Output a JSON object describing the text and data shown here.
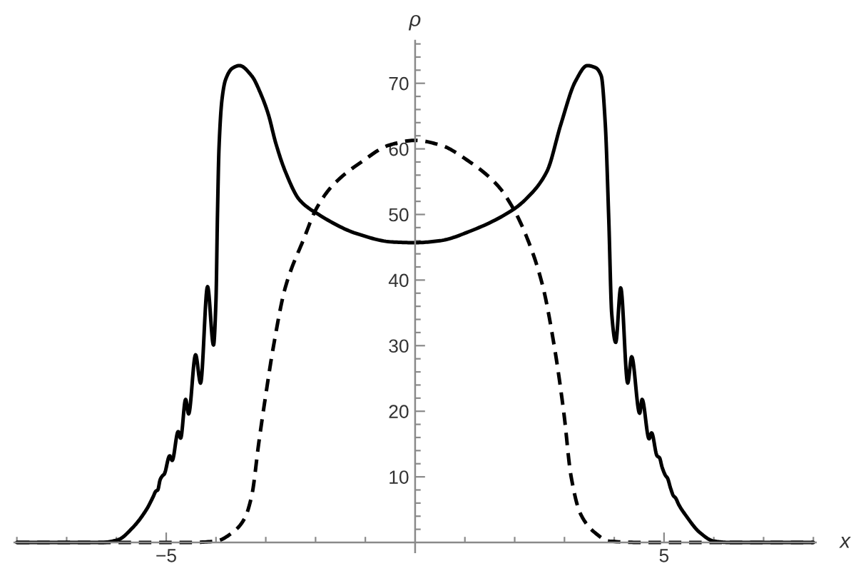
{
  "chart_data": {
    "type": "line",
    "xlabel": "x",
    "ylabel": "ρ",
    "xlim": [
      -8.05,
      8.05
    ],
    "ylim": [
      -1.5,
      76.5
    ],
    "xticks": [
      {
        "value": -8,
        "label": null
      },
      {
        "value": -7,
        "label": null
      },
      {
        "value": -6,
        "label": null
      },
      {
        "value": -5,
        "label": "−5"
      },
      {
        "value": -4,
        "label": null
      },
      {
        "value": -3,
        "label": null
      },
      {
        "value": -2,
        "label": null
      },
      {
        "value": -1,
        "label": null
      },
      {
        "value": 1,
        "label": null
      },
      {
        "value": 2,
        "label": null
      },
      {
        "value": 3,
        "label": null
      },
      {
        "value": 4,
        "label": null
      },
      5,
      {
        "value": 6,
        "label": null
      },
      {
        "value": 7,
        "label": null
      },
      {
        "value": 8,
        "label": null
      }
    ],
    "yticks": [
      {
        "value": 2,
        "label": null
      },
      {
        "value": 4,
        "label": null
      },
      {
        "value": 6,
        "label": null
      },
      {
        "value": 8,
        "label": null
      },
      10,
      {
        "value": 12,
        "label": null
      },
      {
        "value": 14,
        "label": null
      },
      {
        "value": 16,
        "label": null
      },
      {
        "value": 18,
        "label": null
      },
      20,
      {
        "value": 22,
        "label": null
      },
      {
        "value": 24,
        "label": null
      },
      {
        "value": 26,
        "label": null
      },
      {
        "value": 28,
        "label": null
      },
      30,
      {
        "value": 32,
        "label": null
      },
      {
        "value": 34,
        "label": null
      },
      {
        "value": 36,
        "label": null
      },
      {
        "value": 38,
        "label": null
      },
      40,
      {
        "value": 42,
        "label": null
      },
      {
        "value": 44,
        "label": null
      },
      {
        "value": 46,
        "label": null
      },
      {
        "value": 48,
        "label": null
      },
      50,
      {
        "value": 52,
        "label": null
      },
      {
        "value": 54,
        "label": null
      },
      {
        "value": 56,
        "label": null
      },
      {
        "value": 58,
        "label": null
      },
      60,
      {
        "value": 62,
        "label": null
      },
      {
        "value": 64,
        "label": null
      },
      {
        "value": 66,
        "label": null
      },
      {
        "value": 68,
        "label": null
      },
      70,
      {
        "value": 72,
        "label": null
      },
      {
        "value": 74,
        "label": null
      },
      {
        "value": 76,
        "label": null
      }
    ],
    "series": [
      {
        "color": "#000000",
        "line_style": "solid",
        "x": [
          -8,
          -6.3,
          -5.97,
          -5.68,
          -5.39,
          -5.26,
          -5.21,
          -5.17,
          -5.12,
          -5.07,
          -5.04,
          -4.93,
          -4.88,
          -4.76,
          -4.71,
          -4.61,
          -4.55,
          -4.41,
          -4.31,
          -4.17,
          -4.05,
          -4.0,
          -3.97,
          -3.94,
          -3.88,
          -3.81,
          -3.67,
          -3.53,
          -3.28,
          -3.09,
          -2.95,
          -2.8,
          -2.61,
          -2.32,
          -1.94,
          -1.18,
          -0.45,
          0,
          0.5,
          1.12,
          1.98,
          2.26,
          2.65,
          2.93,
          3.22,
          3.46,
          3.62,
          3.74,
          3.82,
          3.89,
          3.95,
          4.03,
          4.13,
          4.27,
          4.35,
          4.51,
          4.56,
          4.7,
          4.75,
          4.86,
          4.91,
          4.96,
          5.03,
          5.07,
          5.13,
          5.19,
          5.23,
          5.3,
          5.43,
          5.72,
          6.0,
          6.3,
          8
        ],
        "values": [
          0,
          0,
          0.4,
          2.2,
          5.1,
          7.0,
          7.8,
          8.0,
          9.6,
          10.2,
          10.4,
          13.2,
          12.5,
          16.9,
          15.9,
          21.8,
          19.6,
          28.6,
          24.3,
          39.0,
          30.1,
          37.0,
          50.0,
          60.0,
          67.5,
          70.5,
          72.3,
          72.7,
          71.1,
          68.2,
          65.3,
          60.9,
          56.6,
          52.2,
          50.0,
          47.1,
          45.8,
          45.7,
          46.0,
          47.5,
          50.8,
          52.6,
          56.6,
          63.8,
          70.3,
          72.7,
          72.4,
          71.1,
          63.8,
          49.3,
          34.8,
          30.5,
          38.8,
          24.3,
          28.3,
          19.7,
          21.8,
          15.8,
          16.7,
          13.2,
          12.9,
          11.5,
          10.2,
          9.8,
          8.3,
          7.1,
          6.8,
          5.7,
          4.2,
          1.5,
          0.2,
          0,
          0
        ]
      },
      {
        "color": "#000000",
        "line_style": "dashed",
        "x": [
          -8,
          -4.5,
          -4.0,
          -3.67,
          -3.43,
          -3.28,
          -3.14,
          -3.0,
          -2.85,
          -2.61,
          -2.23,
          -1.99,
          -1.66,
          -1.08,
          -0.51,
          0,
          0.5,
          1.1,
          1.66,
          1.98,
          2.25,
          2.56,
          2.8,
          2.99,
          3.13,
          3.32,
          3.61,
          3.9,
          4.5,
          8
        ],
        "values": [
          0,
          0,
          0.2,
          1.5,
          3.6,
          7.2,
          15.2,
          22.5,
          29.7,
          38.8,
          46.4,
          50.8,
          54.4,
          58.0,
          60.6,
          61.3,
          60.6,
          58.0,
          54.4,
          50.8,
          46.4,
          39.2,
          29.7,
          19.6,
          10.2,
          4.4,
          1.5,
          0.2,
          0,
          0
        ]
      }
    ]
  }
}
